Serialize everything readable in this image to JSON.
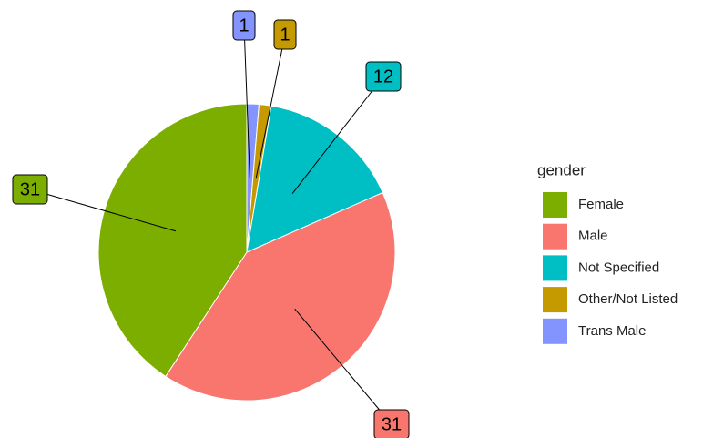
{
  "chart_data": {
    "type": "pie",
    "categories": [
      "Female",
      "Male",
      "Not Specified",
      "Other/Not Listed",
      "Trans Male"
    ],
    "values": [
      31,
      31,
      12,
      1,
      1
    ],
    "colors": [
      "#7CAE00",
      "#F8766D",
      "#00BFC4",
      "#C49A00",
      "#8494FF"
    ],
    "legend_title": "gender"
  }
}
